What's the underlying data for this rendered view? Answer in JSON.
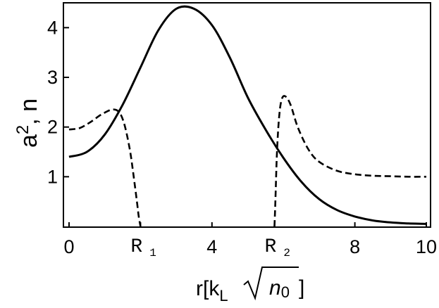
{
  "chart_data": {
    "type": "line",
    "xlim": [
      0,
      10
    ],
    "ylim": [
      0,
      4.5
    ],
    "xticks": [
      {
        "value": 0,
        "label": "0"
      },
      {
        "value": 2,
        "label": "R",
        "sub": "1"
      },
      {
        "value": 4,
        "label": "4"
      },
      {
        "value": 5.75,
        "label": "R",
        "sub": "2"
      },
      {
        "value": 8,
        "label": "8"
      },
      {
        "value": 10,
        "label": "10"
      }
    ],
    "yticks": [
      {
        "value": 1,
        "label": "1"
      },
      {
        "value": 2,
        "label": "2"
      },
      {
        "value": 3,
        "label": "3"
      },
      {
        "value": 4,
        "label": "4"
      }
    ],
    "xlabel": {
      "prefix": "r[k",
      "sub": "L",
      "sqrt_arg": "n",
      "sqrt_sub": "0",
      "suffix": "]"
    },
    "ylabel": {
      "base": "a",
      "sup": "2",
      "rest": ", n"
    },
    "series": [
      {
        "style": "solid",
        "x": [
          0,
          0.5,
          1,
          1.5,
          2,
          2.5,
          3,
          3.5,
          4,
          4.5,
          5,
          5.5,
          6,
          6.5,
          7,
          7.5,
          8,
          8.5,
          9,
          9.5,
          10
        ],
        "y": [
          1.4,
          1.5,
          1.85,
          2.45,
          3.2,
          3.95,
          4.38,
          4.38,
          4.05,
          3.4,
          2.6,
          1.95,
          1.38,
          0.9,
          0.55,
          0.33,
          0.2,
          0.12,
          0.08,
          0.06,
          0.05
        ]
      },
      {
        "style": "dashed",
        "x": [
          0,
          0.3,
          0.6,
          0.9,
          1.2,
          1.4,
          1.55,
          1.7,
          1.8,
          1.9,
          1.95,
          2.0
        ],
        "y": [
          1.95,
          1.98,
          2.1,
          2.25,
          2.35,
          2.3,
          2.05,
          1.55,
          1.05,
          0.5,
          0.2,
          0
        ]
      },
      {
        "style": "dashed",
        "x": [
          5.75,
          5.78,
          5.82,
          5.88,
          5.95,
          6.05,
          6.2,
          6.4,
          6.7,
          7.0,
          7.5,
          8.0,
          8.5,
          9.0,
          9.5,
          10
        ],
        "y": [
          0,
          0.6,
          1.5,
          2.2,
          2.55,
          2.62,
          2.45,
          2.0,
          1.55,
          1.3,
          1.12,
          1.05,
          1.02,
          1.01,
          1.0,
          1.0
        ]
      }
    ]
  }
}
